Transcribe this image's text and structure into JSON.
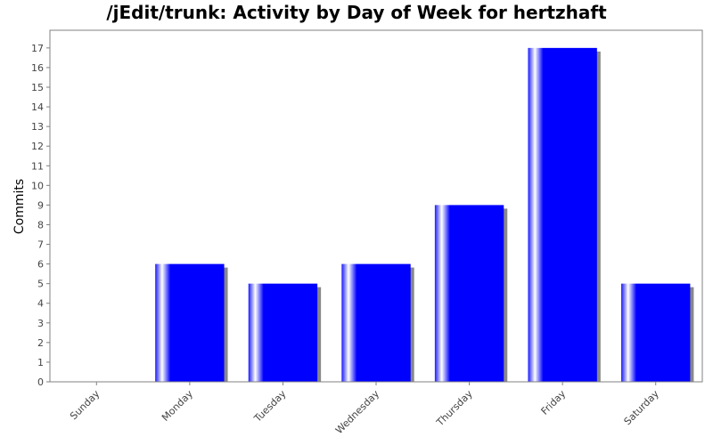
{
  "chart_data": {
    "type": "bar",
    "title": "/jEdit/trunk: Activity by Day of Week for hertzhaft",
    "xlabel": "",
    "ylabel": "Commits",
    "categories": [
      "Sunday",
      "Monday",
      "Tuesday",
      "Wednesday",
      "Thursday",
      "Friday",
      "Saturday"
    ],
    "values": [
      0,
      6,
      5,
      6,
      9,
      17,
      5
    ],
    "ylim": [
      0,
      17.9
    ],
    "yticks": [
      0,
      1,
      2,
      3,
      4,
      5,
      6,
      7,
      8,
      9,
      10,
      11,
      12,
      13,
      14,
      15,
      16,
      17
    ],
    "grid": false,
    "legend": "none",
    "colors": {
      "bar": "#0000ff",
      "highlight": "#ffffff",
      "shadow": "#888888",
      "axis": "#808080"
    }
  }
}
